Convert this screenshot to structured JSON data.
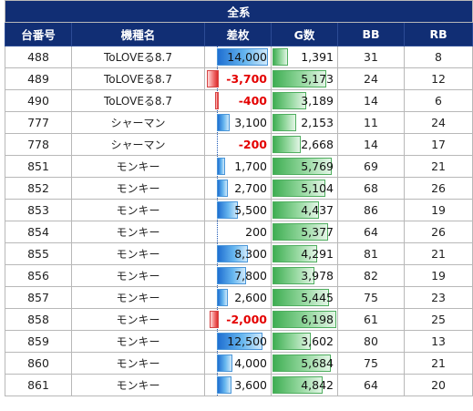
{
  "title": "全系",
  "headers": {
    "machine_no": "台番号",
    "model": "機種名",
    "diff": "差枚",
    "games": "G数",
    "bb": "BB",
    "rb": "RB"
  },
  "colors": {
    "header_bg": "#112e74",
    "positive_bar": "#3a8fe0",
    "negative_bar": "#e53a3a",
    "games_bar": "#4fae5f",
    "negative_text": "#e40000"
  },
  "rows": [
    {
      "no": "488",
      "model": "ToLOVEる8.7",
      "diff": "14,000",
      "diff_value": 14000,
      "games": "1,391",
      "games_value": 1391,
      "bb": "31",
      "rb": "8"
    },
    {
      "no": "489",
      "model": "ToLOVEる8.7",
      "diff": "-3,700",
      "diff_value": -3700,
      "games": "5,173",
      "games_value": 5173,
      "bb": "24",
      "rb": "12"
    },
    {
      "no": "490",
      "model": "ToLOVEる8.7",
      "diff": "-400",
      "diff_value": -400,
      "games": "3,189",
      "games_value": 3189,
      "bb": "14",
      "rb": "6"
    },
    {
      "no": "777",
      "model": "シャーマン",
      "diff": "3,100",
      "diff_value": 3100,
      "games": "2,153",
      "games_value": 2153,
      "bb": "11",
      "rb": "24"
    },
    {
      "no": "778",
      "model": "シャーマン",
      "diff": "-200",
      "diff_value": -200,
      "games": "2,668",
      "games_value": 2668,
      "bb": "14",
      "rb": "17"
    },
    {
      "no": "851",
      "model": "モンキー",
      "diff": "1,700",
      "diff_value": 1700,
      "games": "5,769",
      "games_value": 5769,
      "bb": "69",
      "rb": "21"
    },
    {
      "no": "852",
      "model": "モンキー",
      "diff": "2,700",
      "diff_value": 2700,
      "games": "5,104",
      "games_value": 5104,
      "bb": "68",
      "rb": "26"
    },
    {
      "no": "853",
      "model": "モンキー",
      "diff": "5,500",
      "diff_value": 5500,
      "games": "4,437",
      "games_value": 4437,
      "bb": "86",
      "rb": "19"
    },
    {
      "no": "854",
      "model": "モンキー",
      "diff": "200",
      "diff_value": 200,
      "games": "5,377",
      "games_value": 5377,
      "bb": "64",
      "rb": "26"
    },
    {
      "no": "855",
      "model": "モンキー",
      "diff": "8,300",
      "diff_value": 8300,
      "games": "4,291",
      "games_value": 4291,
      "bb": "81",
      "rb": "21"
    },
    {
      "no": "856",
      "model": "モンキー",
      "diff": "7,800",
      "diff_value": 7800,
      "games": "3,978",
      "games_value": 3978,
      "bb": "82",
      "rb": "19"
    },
    {
      "no": "857",
      "model": "モンキー",
      "diff": "2,600",
      "diff_value": 2600,
      "games": "5,445",
      "games_value": 5445,
      "bb": "75",
      "rb": "23"
    },
    {
      "no": "858",
      "model": "モンキー",
      "diff": "-2,000",
      "diff_value": -2000,
      "games": "6,198",
      "games_value": 6198,
      "bb": "61",
      "rb": "25"
    },
    {
      "no": "859",
      "model": "モンキー",
      "diff": "12,500",
      "diff_value": 12500,
      "games": "3,602",
      "games_value": 3602,
      "bb": "80",
      "rb": "13"
    },
    {
      "no": "860",
      "model": "モンキー",
      "diff": "4,000",
      "diff_value": 4000,
      "games": "5,684",
      "games_value": 5684,
      "bb": "75",
      "rb": "21"
    },
    {
      "no": "861",
      "model": "モンキー",
      "diff": "3,600",
      "diff_value": 3600,
      "games": "4,842",
      "games_value": 4842,
      "bb": "64",
      "rb": "20"
    }
  ]
}
